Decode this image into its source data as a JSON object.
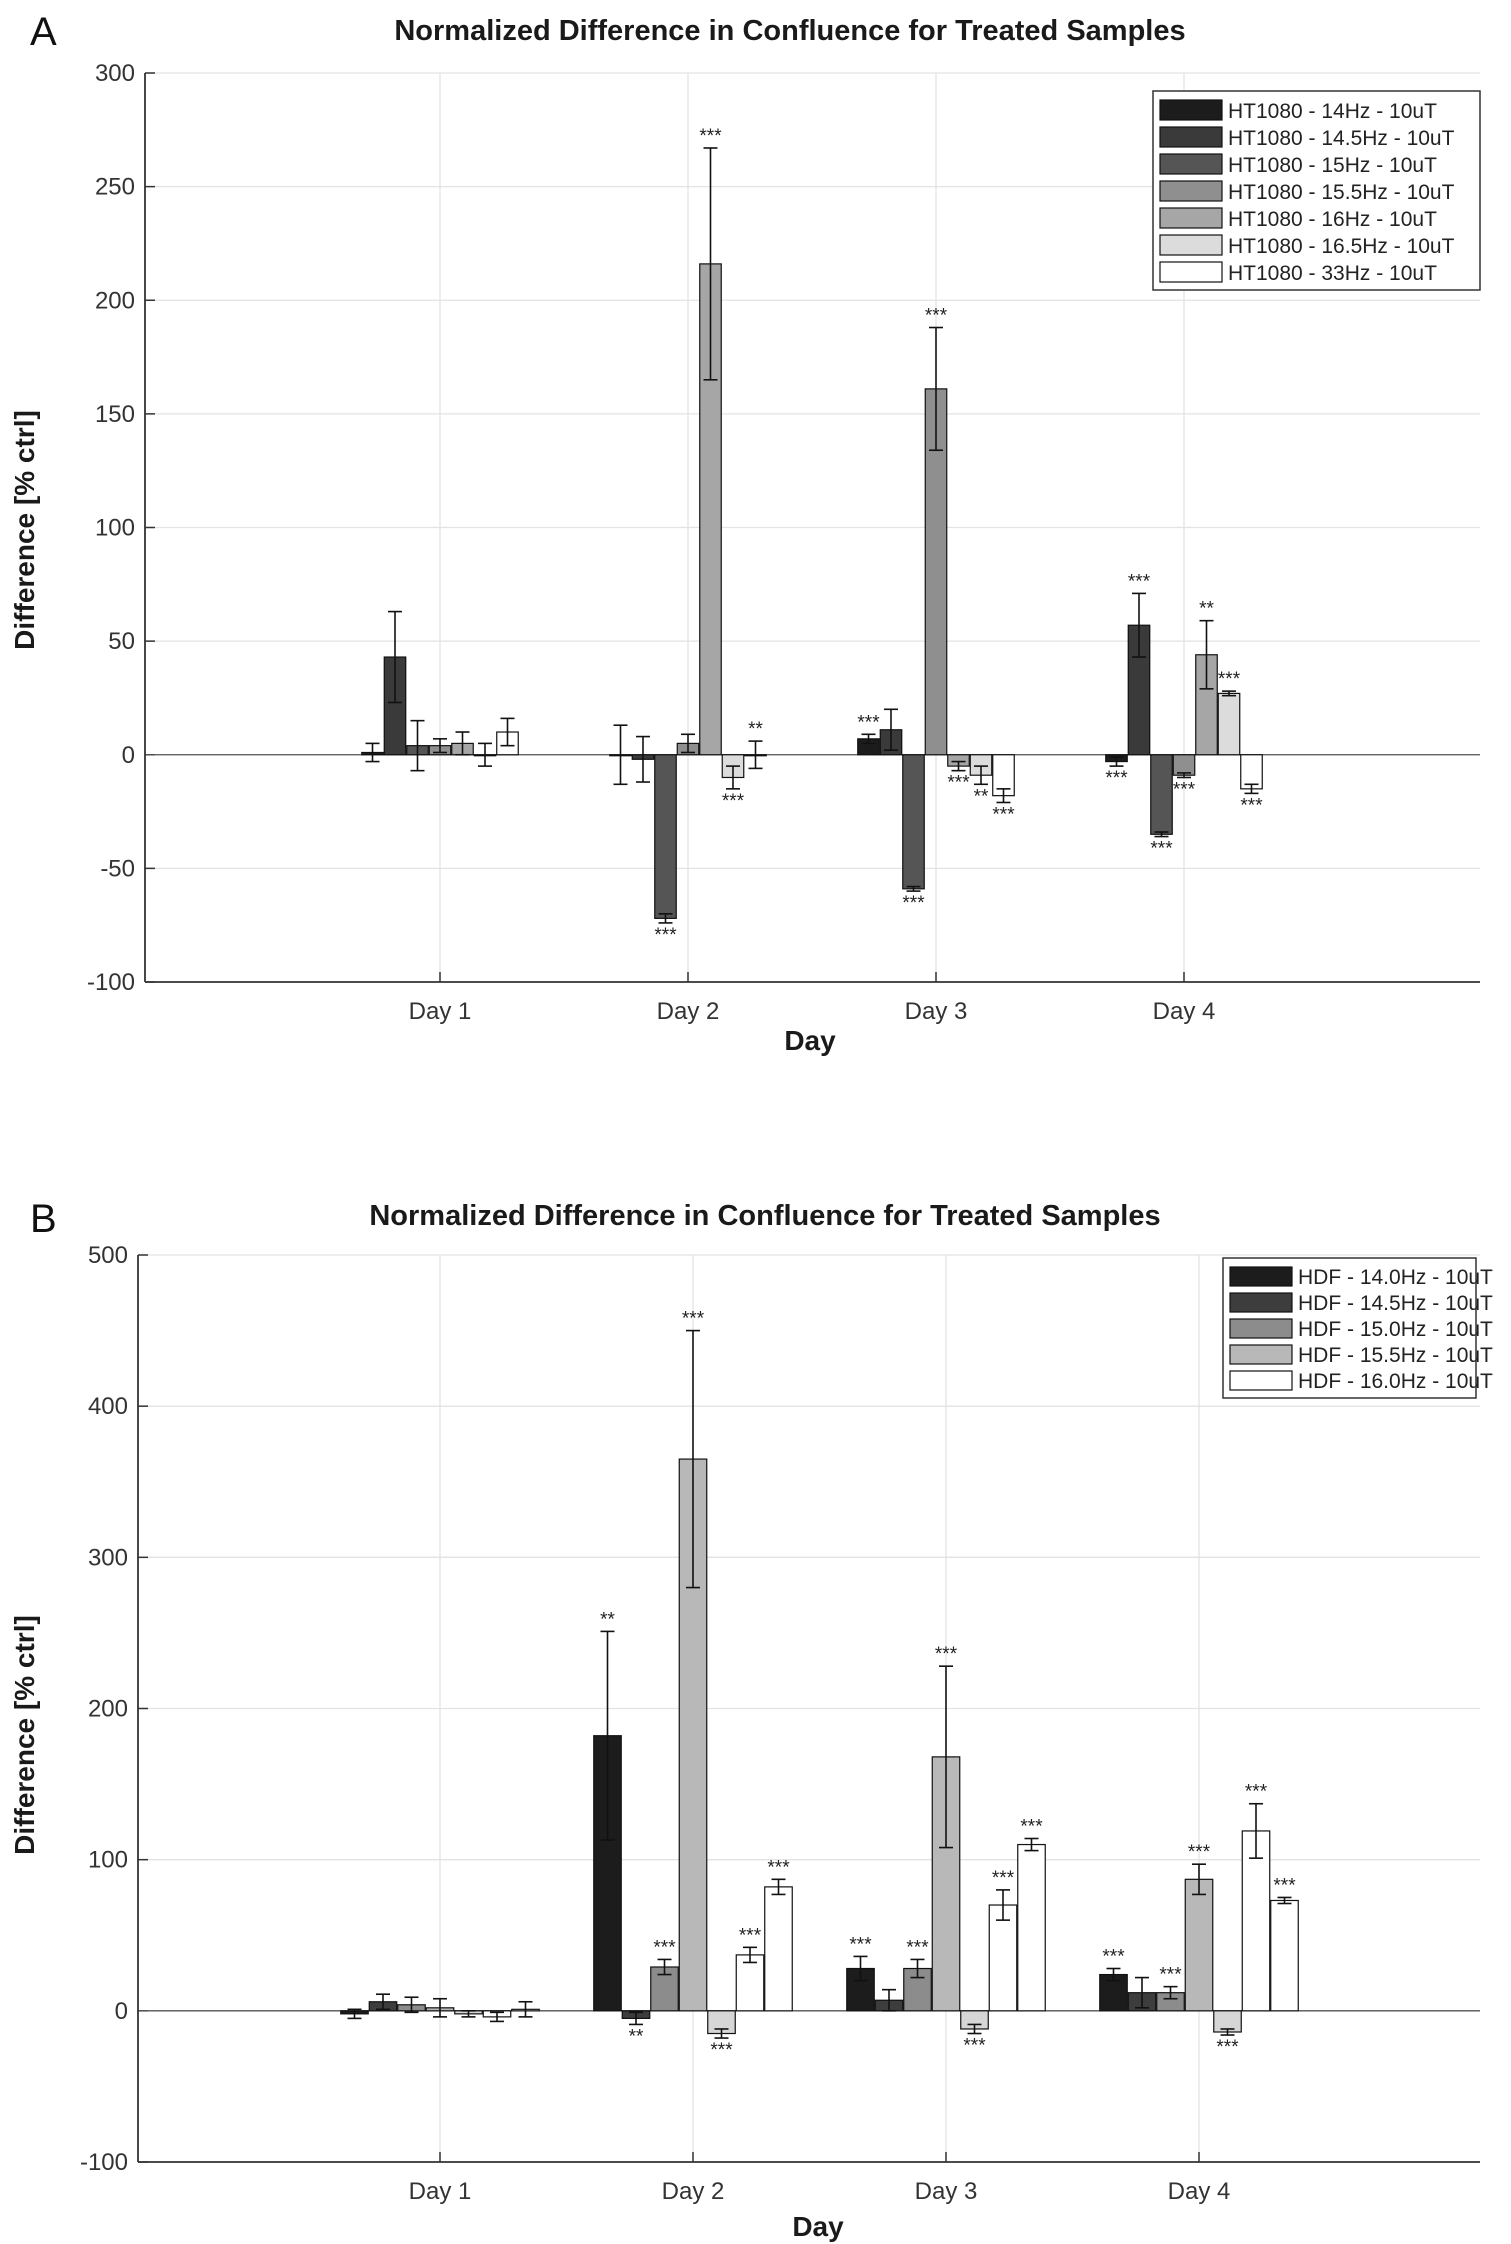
{
  "panels": [
    {
      "label": "A",
      "chart_data": {
        "type": "bar",
        "title": "Normalized Difference in Confluence for Treated Samples",
        "xlabel": "Day",
        "ylabel": "Difference [% ctrl]",
        "ylim": [
          -100,
          300
        ],
        "yticks": [
          -100,
          -50,
          0,
          50,
          100,
          150,
          200,
          250,
          300
        ],
        "grid": true,
        "legend_position": "top-right",
        "categories": [
          "Day 1",
          "Day 2",
          "Day 3",
          "Day 4"
        ],
        "series": [
          {
            "name": "HT1080 - 14Hz - 10uT",
            "color": "#1c1c1c",
            "values": [
              1,
              0,
              7,
              -3
            ],
            "errors": [
              4,
              13,
              2,
              2
            ],
            "sig": [
              "",
              "",
              "***",
              "***"
            ]
          },
          {
            "name": "HT1080 - 14.5Hz - 10uT",
            "color": "#3a3a3a",
            "values": [
              43,
              -2,
              11,
              57
            ],
            "errors": [
              20,
              10,
              9,
              14
            ],
            "sig": [
              "",
              "",
              "",
              "***"
            ]
          },
          {
            "name": "HT1080 - 15Hz - 10uT",
            "color": "#555555",
            "values": [
              4,
              -72,
              -59,
              -35
            ],
            "errors": [
              11,
              2,
              1,
              1
            ],
            "sig": [
              "",
              "***",
              "***",
              "***"
            ]
          },
          {
            "name": "HT1080 - 15.5Hz - 10uT",
            "color": "#8f8f8f",
            "values": [
              4,
              5,
              161,
              -9
            ],
            "errors": [
              3,
              4,
              27,
              1
            ],
            "sig": [
              "",
              "",
              "***",
              "***"
            ]
          },
          {
            "name": "HT1080 - 16Hz - 10uT",
            "color": "#a6a6a6",
            "values": [
              5,
              216,
              -5,
              44
            ],
            "errors": [
              5,
              51,
              2,
              15
            ],
            "sig": [
              "",
              "***",
              "***",
              "**"
            ]
          },
          {
            "name": "HT1080 - 16.5Hz - 10uT",
            "color": "#dcdcdc",
            "values": [
              0,
              -10,
              -9,
              27
            ],
            "errors": [
              5,
              5,
              4,
              1
            ],
            "sig": [
              "",
              "***",
              "**",
              "***"
            ]
          },
          {
            "name": "HT1080 - 33Hz - 10uT",
            "color": "#ffffff",
            "values": [
              10,
              0,
              -18,
              -15
            ],
            "errors": [
              6,
              6,
              3,
              2
            ],
            "sig": [
              "",
              "**",
              "***",
              "***"
            ]
          }
        ],
        "note": "Bar ordering within each day follows the image"
      }
    },
    {
      "label": "B",
      "chart_data": {
        "type": "bar",
        "title": "Normalized Difference in Confluence for Treated Samples",
        "xlabel": "Day",
        "ylabel": "Difference [% ctrl]",
        "ylim": [
          -100,
          500
        ],
        "yticks": [
          -100,
          0,
          100,
          200,
          300,
          400,
          500
        ],
        "grid": true,
        "legend_position": "top-right",
        "categories": [
          "Day 1",
          "Day 2",
          "Day 3",
          "Day 4"
        ],
        "series": [
          {
            "name": "HDF - 14.0Hz - 10uT",
            "color": "#1c1c1c",
            "values": [
              -2,
              182,
              28,
              24
            ],
            "errors": [
              3,
              69,
              8,
              4
            ],
            "sig": [
              "",
              "**",
              "***",
              "***"
            ]
          },
          {
            "name": "HDF - 14.5Hz - 10uT",
            "color": "#3d3d3d",
            "values": [
              6,
              -5,
              7,
              12
            ],
            "errors": [
              5,
              4,
              7,
              10
            ],
            "sig": [
              "",
              "**",
              "",
              ""
            ]
          },
          {
            "name": "HDF - 15.0Hz - 10uT",
            "color": "#8c8c8c",
            "values": [
              4,
              29,
              28,
              12
            ],
            "errors": [
              5,
              5,
              6,
              4
            ],
            "sig": [
              "",
              "***",
              "***",
              "***"
            ]
          },
          {
            "name": "HDF - 15.5Hz - 10uT",
            "color": "#b8b8b8",
            "values": [
              2,
              365,
              168,
              87
            ],
            "errors": [
              6,
              85,
              60,
              10
            ],
            "sig": [
              "",
              "***",
              "***",
              "***"
            ]
          },
          {
            "name": "HDF - 16.0Hz - 10uT",
            "color": "#ffffff",
            "values": [
              -4,
              37,
              70,
              119
            ],
            "errors": [
              3,
              5,
              10,
              18
            ],
            "sig": [
              "",
              "***",
              "***",
              "***"
            ]
          }
        ]
      }
    }
  ],
  "extra_bars_B": {
    "note": "additional bars drawn in the image per day",
    "values": [
      [
        -2,
        1
      ],
      [
        -15,
        82
      ],
      [
        -12,
        110
      ],
      [
        -14,
        73
      ]
    ],
    "errors": [
      [
        2,
        5
      ],
      [
        3,
        5
      ],
      [
        3,
        4
      ],
      [
        2,
        2
      ]
    ],
    "sig": [
      [
        "",
        ""
      ],
      [
        "***",
        "***"
      ],
      [
        "***",
        "***"
      ],
      [
        "***",
        "***"
      ]
    ],
    "colors": [
      "#d6d6d6",
      "#ffffff"
    ]
  }
}
